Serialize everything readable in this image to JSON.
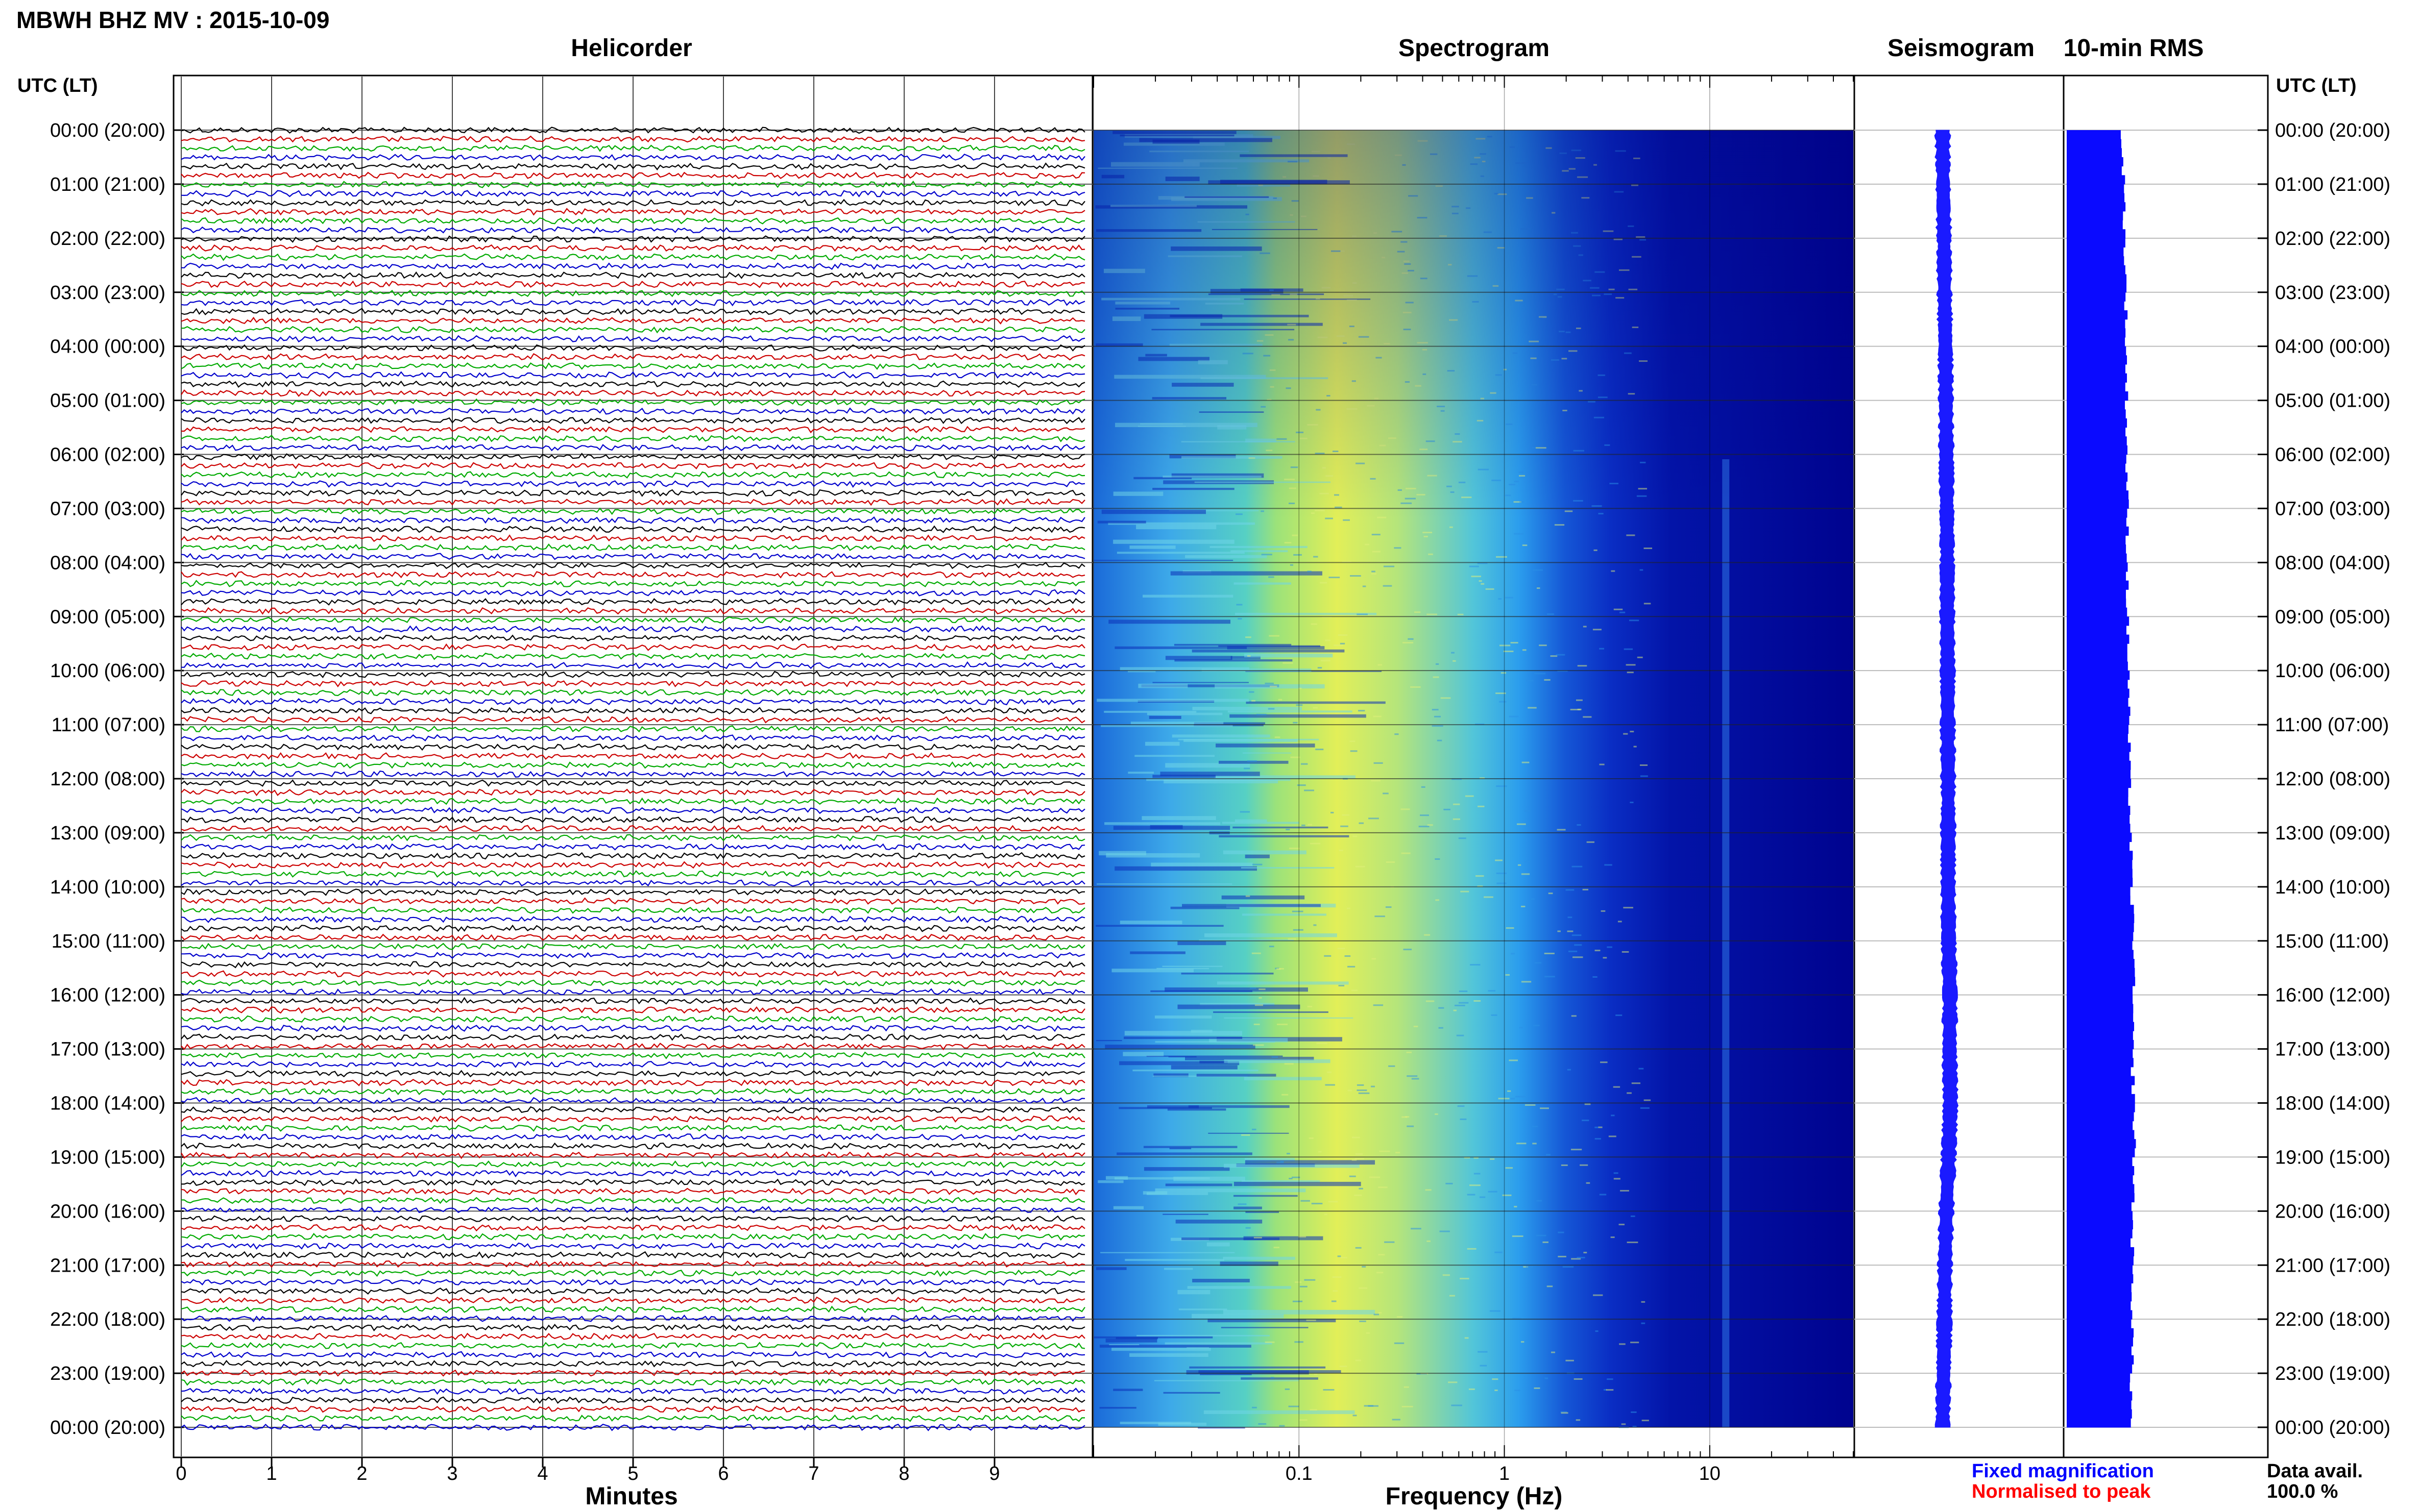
{
  "header": {
    "station_title": "MBWH BHZ MV : 2015-10-09",
    "utc_label_left": "UTC (LT)",
    "utc_label_right": "UTC (LT)"
  },
  "panels": {
    "helicorder": "Helicorder",
    "spectrogram": "Spectrogram",
    "seismogram": "Seismogram",
    "rms": "10-min RMS"
  },
  "legend": {
    "fixed": "Fixed magnification",
    "normalised": "Normalised to peak",
    "fixed_color": "#0000ff",
    "normalised_color": "#ff0000"
  },
  "availability": {
    "label": "Data avail.",
    "value": "100.0 %"
  },
  "colors": {
    "trace_cycle": [
      "#000000",
      "#cc0000",
      "#00aa00",
      "#0000cc"
    ],
    "seismogram": "#1a1aff",
    "rms": "#0a0aff",
    "spectrogram_low": "#00008b",
    "spectrogram_high": "#ffff00"
  },
  "chart_data": [
    {
      "type": "line",
      "name": "helicorder",
      "title": "Helicorder",
      "xlabel": "Minutes",
      "x_ticks": [
        "0",
        "1",
        "2",
        "3",
        "4",
        "5",
        "6",
        "7",
        "8",
        "9"
      ],
      "xlim": [
        0,
        10
      ],
      "trace_count": 144,
      "trace_interval_minutes": 10,
      "y_tick_labels": [
        "00:00 (20:00)",
        "01:00 (21:00)",
        "02:00 (22:00)",
        "03:00 (23:00)",
        "04:00 (00:00)",
        "05:00 (01:00)",
        "06:00 (02:00)",
        "07:00 (03:00)",
        "08:00 (04:00)",
        "09:00 (05:00)",
        "10:00 (06:00)",
        "11:00 (07:00)",
        "12:00 (08:00)",
        "13:00 (09:00)",
        "14:00 (10:00)",
        "15:00 (11:00)",
        "16:00 (12:00)",
        "17:00 (13:00)",
        "18:00 (14:00)",
        "19:00 (15:00)",
        "20:00 (16:00)",
        "21:00 (17:00)",
        "22:00 (18:00)",
        "23:00 (19:00)",
        "00:00 (20:00)"
      ]
    },
    {
      "type": "heatmap",
      "name": "spectrogram",
      "title": "Spectrogram",
      "xlabel": "Frequency (Hz)",
      "x_scale": "log",
      "xlim": [
        0.01,
        50
      ],
      "x_tick_labels": [
        {
          "value": 0.1,
          "label": "0.1"
        },
        {
          "value": 1,
          "label": "1"
        },
        {
          "value": 10,
          "label": "10"
        }
      ],
      "peak_band_hz": [
        0.15,
        0.5
      ],
      "hours": 24
    },
    {
      "type": "area",
      "name": "seismogram",
      "title": "Seismogram",
      "hours": 24,
      "relative_offset": [
        0.0,
        0.01,
        0.03,
        0.04,
        0.06,
        0.07,
        0.08,
        0.09,
        0.1,
        0.1,
        0.11,
        0.11,
        0.12,
        0.12,
        0.12,
        0.13,
        0.16,
        0.15,
        0.17,
        0.13,
        0.08,
        0.05,
        0.04,
        0.02,
        0.0
      ]
    },
    {
      "type": "bar",
      "name": "rms",
      "title": "10-min RMS",
      "hours": 24,
      "relative_rms": [
        0.82,
        0.85,
        0.86,
        0.88,
        0.88,
        0.89,
        0.89,
        0.9,
        0.9,
        0.9,
        0.92,
        0.92,
        0.93,
        0.95,
        0.96,
        1.0,
        0.98,
        0.97,
        1.0,
        1.0,
        0.98,
        0.97,
        0.98,
        0.96,
        0.96
      ]
    }
  ]
}
